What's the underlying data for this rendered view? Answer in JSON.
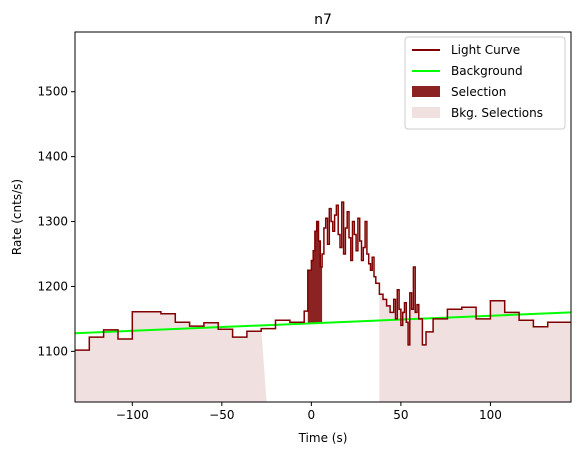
{
  "chart_data": {
    "type": "line",
    "title": "n7",
    "xlabel": "Time (s)",
    "ylabel": "Rate (cnts/s)",
    "xlim": [
      -132,
      145
    ],
    "ylim": [
      1022,
      1592
    ],
    "xticks": [
      -100,
      -50,
      0,
      50,
      100
    ],
    "yticks": [
      1100,
      1200,
      1300,
      1400,
      1500
    ],
    "grid": false,
    "legend_position": "top-right",
    "colors": {
      "light_curve": "#800000",
      "background": "#00ff00",
      "selection": "#8b2323",
      "bkg_selection": "#f0e0e0"
    },
    "legend": [
      {
        "label": "Light Curve",
        "kind": "line",
        "color": "#800000"
      },
      {
        "label": "Background",
        "kind": "line",
        "color": "#00ff00"
      },
      {
        "label": "Selection",
        "kind": "patch",
        "color": "#8b2323"
      },
      {
        "label": "Bkg. Selections",
        "kind": "patch",
        "color": "#f0e0e0"
      }
    ],
    "light_curve": {
      "x": [
        -132,
        -124,
        -124,
        -116,
        -116,
        -108,
        -108,
        -100,
        -100,
        -84,
        -84,
        -76,
        -76,
        -68,
        -68,
        -60,
        -60,
        -52,
        -52,
        -44,
        -44,
        -36,
        -36,
        -28,
        -28,
        -20,
        -20,
        -12,
        -12,
        -4,
        -4,
        -2,
        -2,
        0,
        0,
        1,
        1,
        2,
        2,
        3,
        3,
        4,
        4,
        5,
        5,
        6,
        6,
        7,
        7,
        8,
        8,
        9,
        9,
        10,
        10,
        11,
        11,
        12,
        12,
        13,
        13,
        14,
        14,
        15,
        15,
        16,
        16,
        17,
        17,
        18,
        18,
        19,
        19,
        20,
        20,
        21,
        21,
        22,
        22,
        23,
        23,
        24,
        24,
        25,
        25,
        26,
        26,
        27,
        27,
        28,
        28,
        29,
        29,
        30,
        30,
        31,
        31,
        32,
        32,
        33,
        33,
        34,
        34,
        35,
        35,
        36,
        36,
        38,
        38,
        40,
        40,
        42,
        42,
        44,
        44,
        46,
        46,
        47,
        47,
        48,
        48,
        49,
        49,
        50,
        50,
        51,
        51,
        52,
        52,
        53,
        53,
        54,
        54,
        55,
        55,
        56,
        56,
        57,
        57,
        58,
        58,
        59,
        59,
        60,
        60,
        62,
        62,
        64,
        64,
        68,
        68,
        76,
        76,
        84,
        84,
        92,
        92,
        100,
        100,
        108,
        108,
        116,
        116,
        124,
        124,
        132,
        132,
        145
      ],
      "y": [
        1102,
        1102,
        1122,
        1122,
        1133,
        1133,
        1119,
        1119,
        1161,
        1161,
        1158,
        1158,
        1145,
        1145,
        1139,
        1139,
        1144,
        1144,
        1134,
        1134,
        1122,
        1122,
        1131,
        1131,
        1135,
        1135,
        1148,
        1148,
        1145,
        1145,
        1162,
        1162,
        1225,
        1225,
        1240,
        1240,
        1255,
        1255,
        1285,
        1285,
        1300,
        1300,
        1270,
        1270,
        1230,
        1230,
        1250,
        1250,
        1290,
        1290,
        1305,
        1305,
        1265,
        1265,
        1320,
        1320,
        1300,
        1300,
        1285,
        1285,
        1310,
        1310,
        1325,
        1325,
        1280,
        1280,
        1260,
        1260,
        1330,
        1330,
        1250,
        1250,
        1290,
        1290,
        1315,
        1315,
        1275,
        1275,
        1240,
        1240,
        1300,
        1300,
        1280,
        1280,
        1255,
        1255,
        1305,
        1305,
        1270,
        1270,
        1240,
        1240,
        1260,
        1260,
        1300,
        1300,
        1250,
        1250,
        1235,
        1235,
        1225,
        1225,
        1245,
        1245,
        1215,
        1215,
        1205,
        1205,
        1188,
        1188,
        1180,
        1180,
        1170,
        1170,
        1160,
        1160,
        1180,
        1180,
        1150,
        1150,
        1195,
        1195,
        1165,
        1165,
        1140,
        1140,
        1160,
        1160,
        1175,
        1175,
        1145,
        1145,
        1110,
        1110,
        1190,
        1190,
        1165,
        1165,
        1230,
        1230,
        1160,
        1160,
        1172,
        1172,
        1150,
        1150,
        1110,
        1110,
        1130,
        1130,
        1150,
        1150,
        1165,
        1165,
        1168,
        1168,
        1150,
        1150,
        1178,
        1178,
        1160,
        1160,
        1148,
        1148,
        1138,
        1138,
        1145,
        1145
      ]
    },
    "background": {
      "x": [
        -132,
        145
      ],
      "y": [
        1128,
        1160
      ]
    },
    "selection": {
      "x_start": -2,
      "x_end": 6
    },
    "bkg_selections": [
      [
        -132,
        -25
      ],
      [
        38,
        145
      ]
    ]
  }
}
